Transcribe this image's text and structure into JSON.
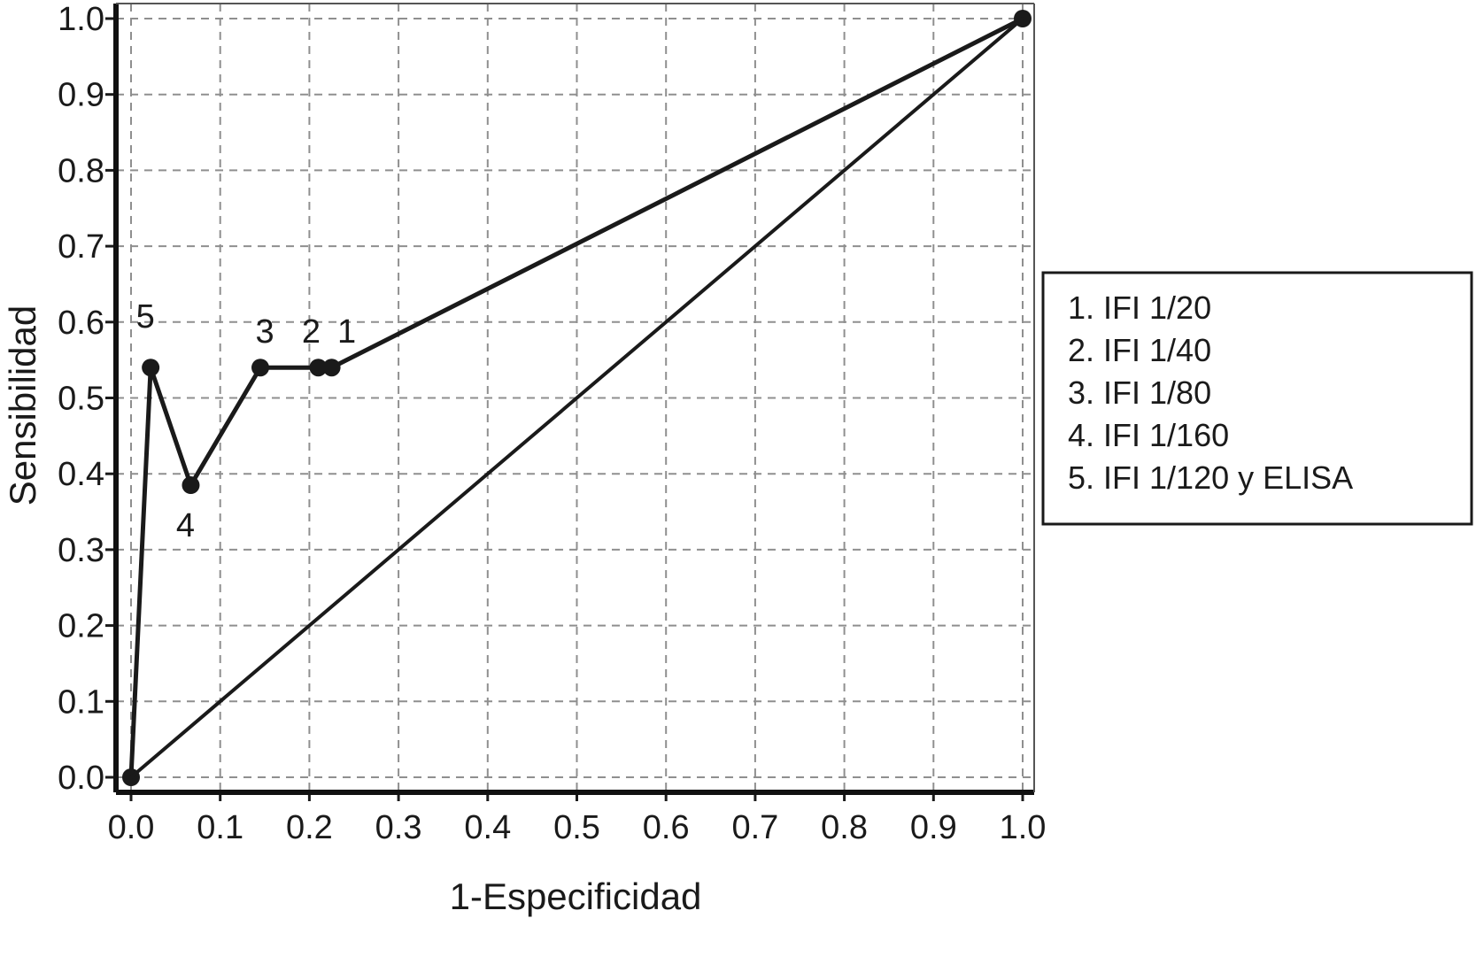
{
  "chart_data": {
    "type": "line",
    "xlabel": "1-Especificidad",
    "ylabel": "Sensibilidad",
    "xlim": [
      0,
      1
    ],
    "ylim": [
      0,
      1
    ],
    "grid": true,
    "legend_placement": "right",
    "x_ticks": [
      "0.0",
      "0.1",
      "0.2",
      "0.3",
      "0.4",
      "0.5",
      "0.6",
      "0.7",
      "0.8",
      "0.9",
      "1.0"
    ],
    "y_ticks": [
      "0.0",
      "0.1",
      "0.2",
      "0.3",
      "0.4",
      "0.5",
      "0.6",
      "0.7",
      "0.8",
      "0.9",
      "1.0"
    ],
    "series": [
      {
        "values": [
          {
            "x": 0.0,
            "y": 0.0
          },
          {
            "x": 0.022,
            "y": 0.54
          },
          {
            "x": 0.067,
            "y": 0.385
          },
          {
            "x": 0.145,
            "y": 0.54
          },
          {
            "x": 0.21,
            "y": 0.54
          },
          {
            "x": 0.225,
            "y": 0.54
          },
          {
            "x": 1.0,
            "y": 1.0
          }
        ]
      },
      {
        "values": [
          {
            "x": 0.0,
            "y": 0.0
          },
          {
            "x": 1.0,
            "y": 1.0
          }
        ]
      }
    ],
    "point_labels": [
      {
        "text": "1",
        "x": 0.225,
        "y": 0.54
      },
      {
        "text": "2",
        "x": 0.21,
        "y": 0.54
      },
      {
        "text": "3",
        "x": 0.145,
        "y": 0.54
      },
      {
        "text": "4",
        "x": 0.067,
        "y": 0.385
      },
      {
        "text": "5",
        "x": 0.022,
        "y": 0.54
      }
    ],
    "legend": [
      "1. IFI 1/20",
      "2. IFI 1/40",
      "3. IFI 1/80",
      "4. IFI 1/160",
      "5. IFI 1/120 y ELISA"
    ]
  }
}
